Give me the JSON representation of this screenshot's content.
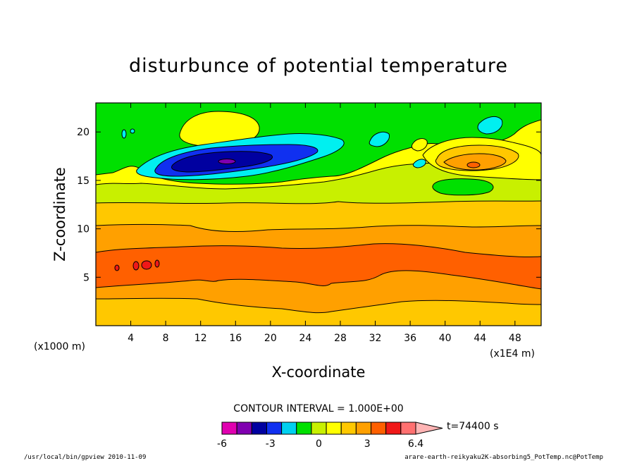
{
  "chart_data": {
    "type": "heatmap",
    "title": "disturbunce of potential temperature",
    "xlabel": "X-coordinate",
    "ylabel": "Z-coordinate",
    "x_unit": "(x1000 m)",
    "x_scale_note": "(x1E4 m)",
    "xlim": [
      0,
      51
    ],
    "ylim": [
      0,
      23
    ],
    "x_ticks": [
      4,
      8,
      12,
      16,
      20,
      24,
      28,
      32,
      36,
      40,
      44,
      48
    ],
    "y_ticks": [
      5,
      10,
      15,
      20
    ],
    "contour_interval_text": "CONTOUR INTERVAL = 1.000E+00",
    "time_label": "t=74400 s",
    "colorbar": {
      "levels": [
        -6,
        -5,
        -4,
        -3,
        -2,
        -1,
        0,
        1,
        2,
        3,
        4,
        5,
        6,
        6.4
      ],
      "tick_labels": [
        "-6",
        "-3",
        "0",
        "3",
        "6.4"
      ],
      "tick_values": [
        -6,
        -3,
        0,
        3,
        6.4
      ],
      "colors": [
        "#e000b0",
        "#8000b0",
        "#0000a0",
        "#1030f0",
        "#00d0f0",
        "#00e000",
        "#c8f000",
        "#ffff00",
        "#ffc800",
        "#ffa000",
        "#ff6000",
        "#f01818",
        "#ff7070",
        "#ffb4b4"
      ]
    },
    "bands": [
      {
        "z_bottom": 0,
        "z_top": 2.8,
        "value": 2
      },
      {
        "z_bottom": 2.8,
        "z_top": 4.0,
        "value": 3
      },
      {
        "z_bottom": 4.0,
        "z_top": 7.5,
        "value": 4
      },
      {
        "z_bottom": 7.5,
        "z_top": 9.5,
        "value": 3
      },
      {
        "z_bottom": 9.5,
        "z_top": 10.5,
        "value": 3
      },
      {
        "z_bottom": 10.5,
        "z_top": 12.8,
        "value": 2
      },
      {
        "z_bottom": 12.8,
        "z_top": 13.8,
        "value": 1
      },
      {
        "z_bottom": 13.8,
        "z_top": 15.2,
        "value": 0
      },
      {
        "z_bottom": 15.2,
        "z_top": 23,
        "value": 0
      }
    ],
    "features": [
      {
        "name": "cold-anomaly-core",
        "x": 15.5,
        "z": 17,
        "value": -4
      },
      {
        "name": "warm-anomaly-upper-right",
        "x": 43,
        "z": 16.5,
        "value": 3
      },
      {
        "name": "warm-spots-lower-left",
        "x": 5,
        "z": 6.3,
        "value": 5
      }
    ]
  },
  "footer": {
    "left": "/usr/local/bin/gpview  2010-11-09",
    "right": "arare-earth-reikyaku2K-absorbing5_PotTemp.nc@PotTemp"
  }
}
